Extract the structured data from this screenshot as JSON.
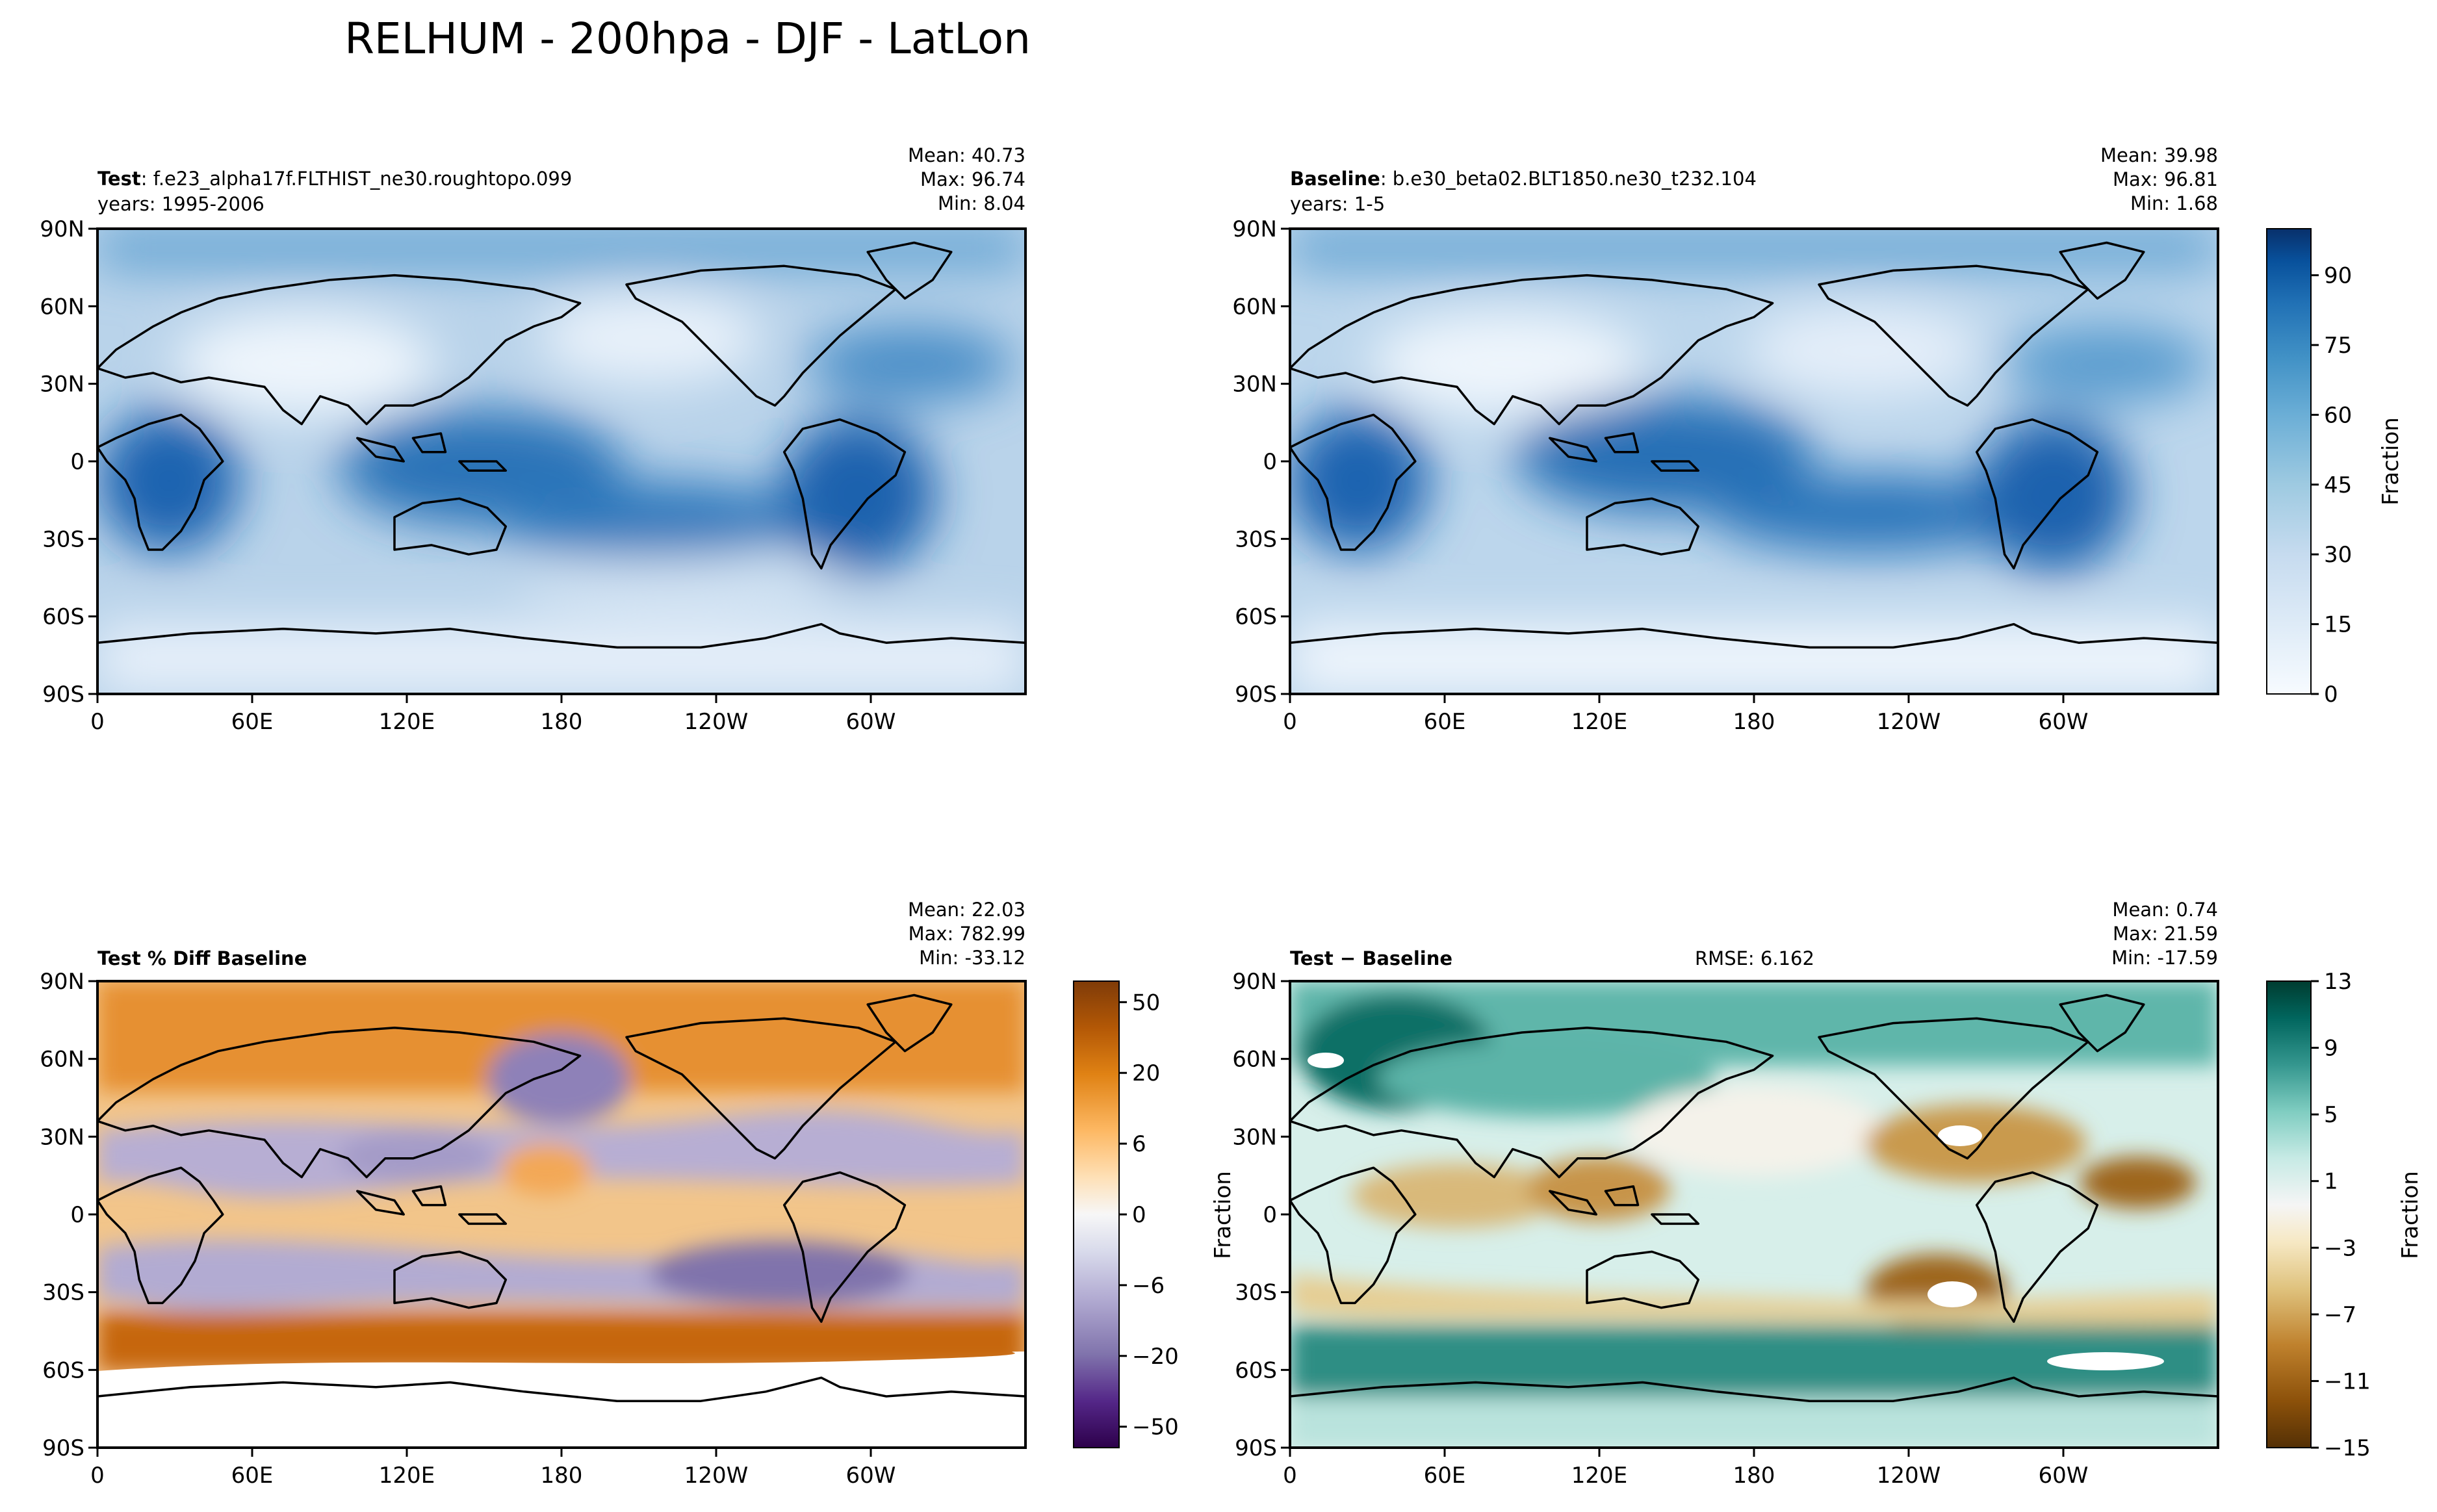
{
  "figure": {
    "title": "RELHUM - 200hpa - DJF - LatLon"
  },
  "axes": {
    "x_ticks": [
      "0",
      "60E",
      "120E",
      "180",
      "120W",
      "60W"
    ],
    "y_ticks": [
      "90N",
      "60N",
      "30N",
      "0",
      "30S",
      "60S",
      "90S"
    ]
  },
  "chart_data": [
    {
      "type": "heatmap",
      "id": "test",
      "title_bold": "Test",
      "title_rest": ": f.e23_alpha17f.FLTHIST_ne30.roughtopo.099",
      "subtitle": "years: 1995-2006",
      "stats": [
        "Mean: 40.73",
        "Max: 96.74",
        "Min:  8.04"
      ],
      "xlim": [
        0,
        360
      ],
      "ylim": [
        -90,
        90
      ],
      "colormap": "Blues"
    },
    {
      "type": "heatmap",
      "id": "baseline",
      "title_bold": "Baseline",
      "title_rest": ": b.e30_beta02.BLT1850.ne30_t232.104",
      "subtitle": "years: 1-5",
      "stats": [
        "Mean: 39.98",
        "Max: 96.81",
        "Min:  1.68"
      ],
      "xlim": [
        0,
        360
      ],
      "ylim": [
        -90,
        90
      ],
      "colormap": "Blues",
      "colorbar": {
        "label": "Fraction",
        "range": [
          0,
          100
        ],
        "ticks": [
          "0",
          "15",
          "30",
          "45",
          "60",
          "75",
          "90"
        ]
      }
    },
    {
      "type": "heatmap",
      "id": "pctdiff",
      "title_bold": "Test % Diff Baseline",
      "title_rest": "",
      "stats": [
        "Mean: 22.03",
        "Max: 782.99",
        "Min: -33.12"
      ],
      "xlim": [
        0,
        360
      ],
      "ylim": [
        -90,
        90
      ],
      "colormap": "PuOr",
      "colorbar": {
        "label": "",
        "ticks": [
          "50",
          "20",
          "6",
          "0",
          "−6",
          "−20",
          "−50"
        ]
      }
    },
    {
      "type": "heatmap",
      "id": "diff",
      "title_bold": "Test − Baseline",
      "title_rest": "",
      "rmse": "RMSE: 6.162",
      "ylabel": "Fraction",
      "stats": [
        "Mean:  0.74",
        "Max: 21.59",
        "Min: -17.59"
      ],
      "xlim": [
        0,
        360
      ],
      "ylim": [
        -90,
        90
      ],
      "colormap": "BrBG",
      "colorbar": {
        "label": "Fraction",
        "range": [
          -15,
          13
        ],
        "ticks": [
          "13",
          "9",
          "5",
          "1",
          "−3",
          "−7",
          "−11",
          "−15"
        ]
      }
    }
  ],
  "colors": {
    "blues": [
      "#f7fbff",
      "#deebf7",
      "#c6dbef",
      "#9ecae1",
      "#6baed6",
      "#4292c6",
      "#2171b5",
      "#08519c",
      "#08306b"
    ],
    "puor": [
      "#2d004b",
      "#542788",
      "#8073ac",
      "#b2abd2",
      "#d8daeb",
      "#f7f7f7",
      "#fee0b6",
      "#fdb863",
      "#e08214",
      "#b35806",
      "#7f3b08"
    ],
    "brbg": [
      "#543005",
      "#8c510a",
      "#bf812d",
      "#dfc27d",
      "#f6e8c3",
      "#f5f5f5",
      "#c7eae5",
      "#80cdc1",
      "#35978f",
      "#01665e",
      "#003c30"
    ]
  }
}
